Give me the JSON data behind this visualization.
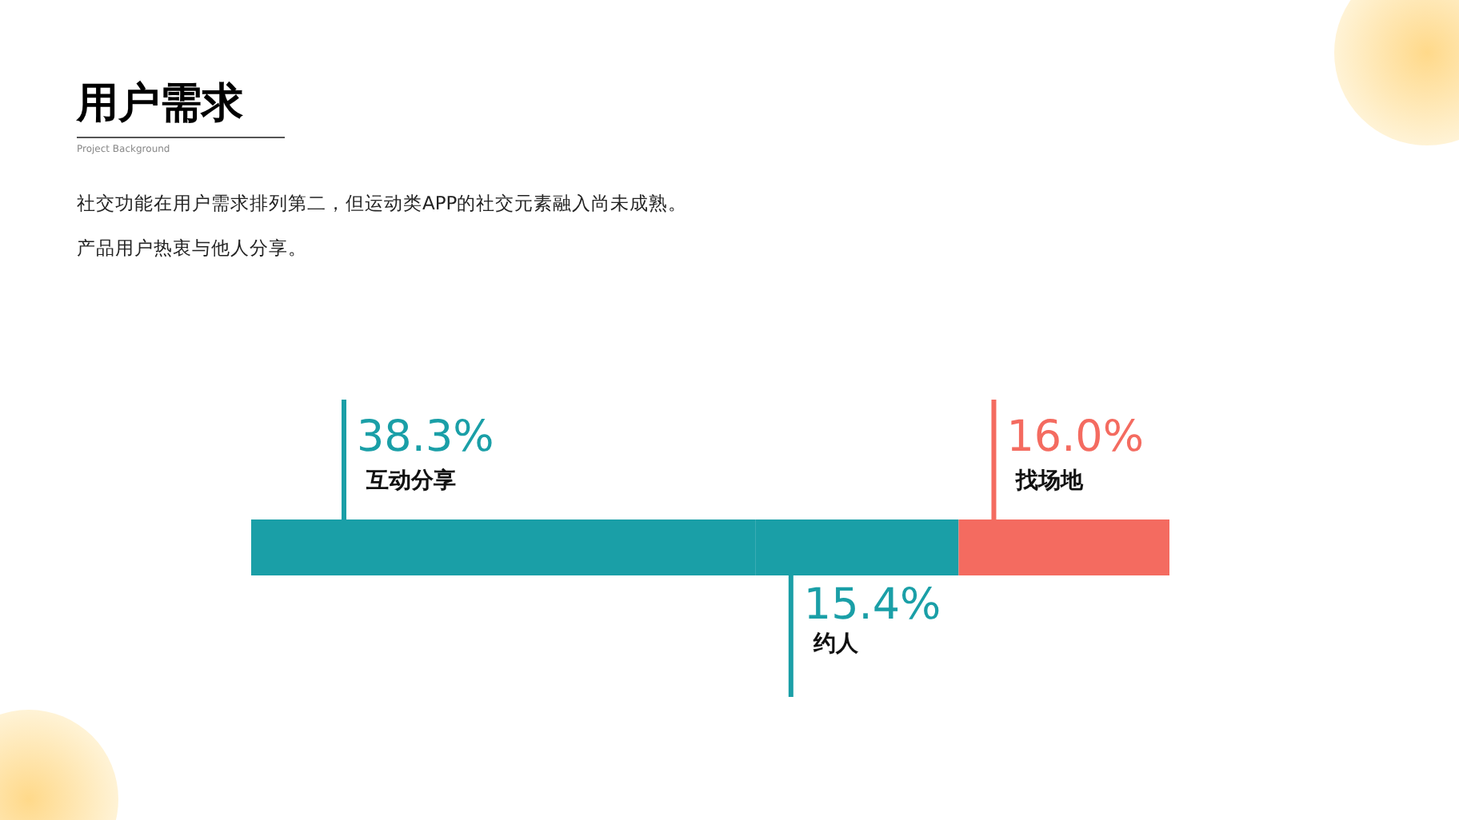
{
  "chart_data": {
    "type": "bar",
    "orientation": "horizontal",
    "stacked": true,
    "title": "用户需求",
    "subtitle": "Project Background",
    "annotations": [
      "社交功能在用户需求排列第二，但运动类APP的社交元素融入尚未成熟。",
      "产品用户热衷与他人分享。"
    ],
    "categories": [
      null
    ],
    "series": [
      {
        "name": "互动分享",
        "color": "#1a9fa7",
        "values": [
          38.3
        ],
        "value_labels": [
          "38.3%"
        ]
      },
      {
        "name": "约人",
        "color": "#1a9fa7",
        "values": [
          15.4
        ],
        "value_labels": [
          "15.4%"
        ]
      },
      {
        "name": "找场地",
        "color": "#f46b60",
        "values": [
          16.0
        ],
        "value_labels": [
          "16.0%"
        ]
      }
    ]
  }
}
